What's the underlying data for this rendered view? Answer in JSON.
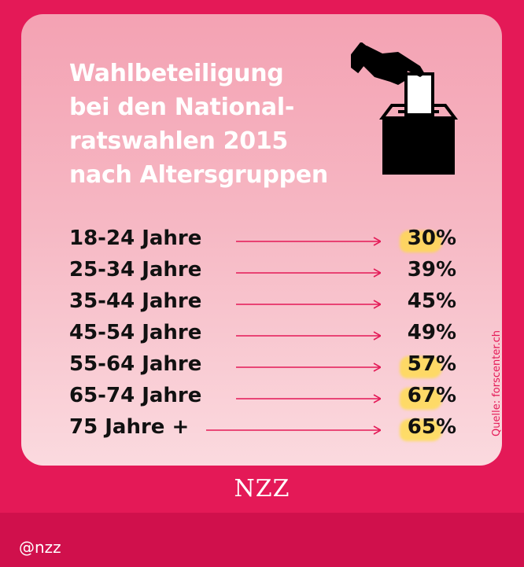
{
  "title_lines": [
    "Wahlbeteiligung",
    "bei den National-",
    "ratswahlen 2015",
    "nach Altersgruppen"
  ],
  "source": "Quelle: forscenter.ch",
  "brand": "NZZ",
  "handle": "@nzz",
  "colors": {
    "background": "#e41957",
    "arrow": "#e41957",
    "highlight": "#ffde3c"
  },
  "icons": [
    "ballot-box-icon",
    "hand-icon"
  ],
  "chart_data": {
    "type": "table",
    "title": "Wahlbeteiligung bei den Nationalratswahlen 2015 nach Altersgruppen",
    "categories": [
      "18-24 Jahre",
      "25-34 Jahre",
      "35-44 Jahre",
      "45-54 Jahre",
      "55-64 Jahre",
      "65-74 Jahre",
      "75 Jahre +"
    ],
    "values": [
      30,
      39,
      45,
      49,
      57,
      67,
      65
    ],
    "value_labels": [
      "30%",
      "39%",
      "45%",
      "49%",
      "57%",
      "67%",
      "65%"
    ],
    "highlighted": [
      true,
      false,
      false,
      false,
      true,
      true,
      true
    ],
    "unit": "%"
  }
}
